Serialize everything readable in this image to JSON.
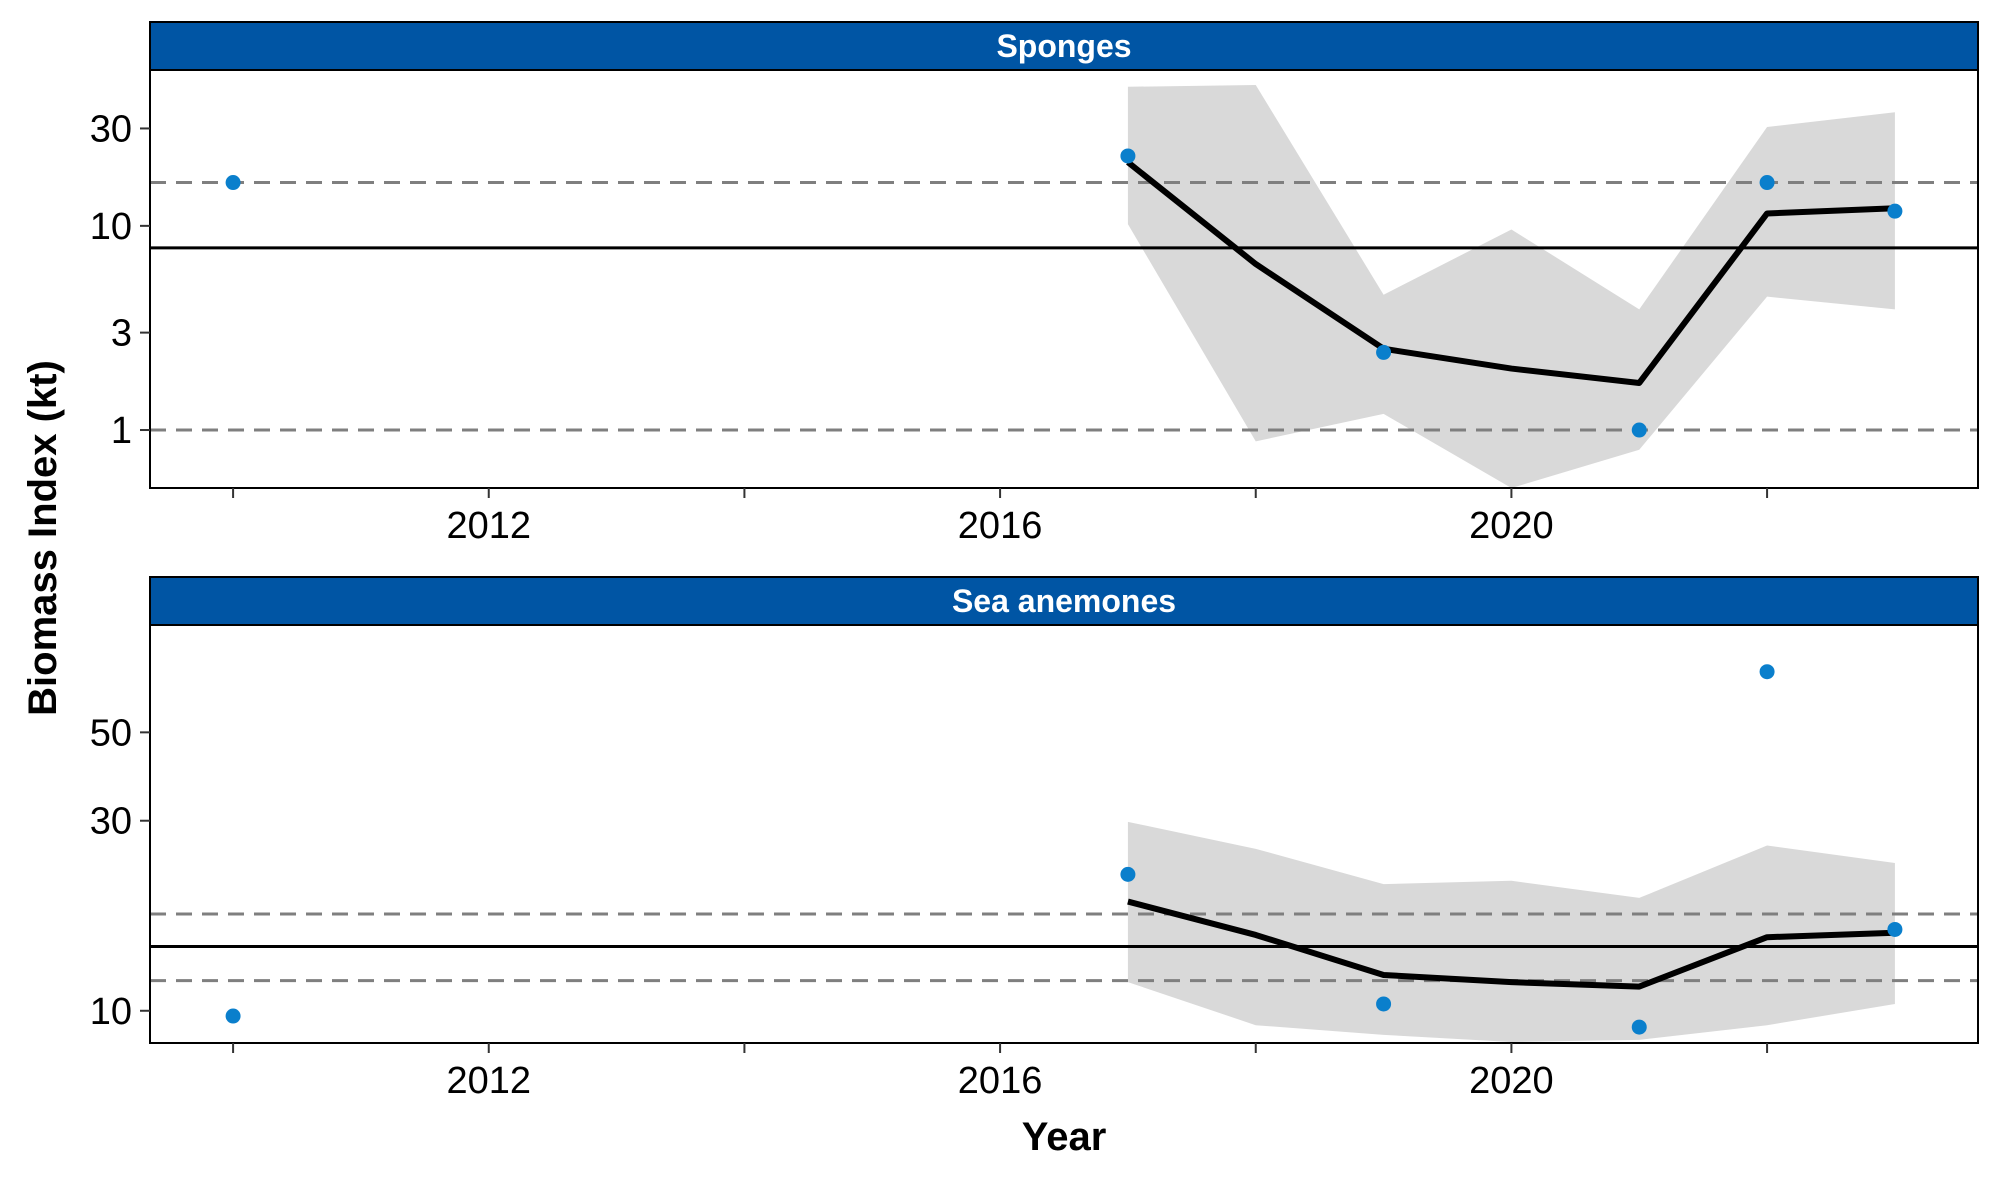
{
  "chart_data": {
    "type": "line",
    "ylabel": "Biomass Index (kt)",
    "xlabel": "Year",
    "x_ticks": [
      2012,
      2016,
      2020
    ],
    "x_minor_ticks": [
      2010,
      2014,
      2018,
      2022
    ],
    "xlim": [
      2009.35,
      2023.65
    ],
    "y_scale": "log",
    "colors": {
      "strip": "#0055a4",
      "points": "#0a7fcc",
      "band": "#d9d9d9",
      "dashed": "#7f7f7f"
    },
    "panels": [
      {
        "title": "Sponges",
        "ylim": [
          0.52,
          58
        ],
        "y_ticks": [
          1,
          3,
          10,
          30
        ],
        "y_tick_labels": [
          "1",
          "3",
          "10",
          "30"
        ],
        "mean_line": 7.8,
        "dashed_lines": [
          1.0,
          16.3
        ],
        "points": [
          {
            "x": 2010,
            "y": 16.3
          },
          {
            "x": 2017,
            "y": 22
          },
          {
            "x": 2019,
            "y": 2.4
          },
          {
            "x": 2021,
            "y": 1.0
          },
          {
            "x": 2022,
            "y": 16.3
          },
          {
            "x": 2023,
            "y": 11.8
          }
        ],
        "trend": [
          {
            "x": 2017,
            "y": 20.5
          },
          {
            "x": 2018,
            "y": 6.5
          },
          {
            "x": 2019,
            "y": 2.5
          },
          {
            "x": 2020,
            "y": 2.0
          },
          {
            "x": 2021,
            "y": 1.7
          },
          {
            "x": 2022,
            "y": 11.5
          },
          {
            "x": 2023,
            "y": 12.2
          }
        ],
        "band_upper": [
          {
            "x": 2017,
            "y": 48
          },
          {
            "x": 2018,
            "y": 49
          },
          {
            "x": 2019,
            "y": 4.6
          },
          {
            "x": 2020,
            "y": 9.6
          },
          {
            "x": 2021,
            "y": 3.9
          },
          {
            "x": 2022,
            "y": 30.5
          },
          {
            "x": 2023,
            "y": 36
          }
        ],
        "band_lower": [
          {
            "x": 2017,
            "y": 10.2
          },
          {
            "x": 2018,
            "y": 0.88
          },
          {
            "x": 2019,
            "y": 1.2
          },
          {
            "x": 2020,
            "y": 0.52
          },
          {
            "x": 2021,
            "y": 0.8
          },
          {
            "x": 2022,
            "y": 4.5
          },
          {
            "x": 2023,
            "y": 3.9
          }
        ]
      },
      {
        "title": "Sea anemones",
        "ylim": [
          8.3,
          93
        ],
        "y_ticks": [
          10,
          30,
          50
        ],
        "y_tick_labels": [
          "10",
          "30",
          "50"
        ],
        "mean_line": 14.5,
        "dashed_lines": [
          11.9,
          17.5
        ],
        "points": [
          {
            "x": 2010,
            "y": 9.7
          },
          {
            "x": 2017,
            "y": 22
          },
          {
            "x": 2019,
            "y": 10.4
          },
          {
            "x": 2021,
            "y": 9.1
          },
          {
            "x": 2022,
            "y": 71
          },
          {
            "x": 2023,
            "y": 16
          }
        ],
        "trend": [
          {
            "x": 2017,
            "y": 18.8
          },
          {
            "x": 2018,
            "y": 15.5
          },
          {
            "x": 2019,
            "y": 12.3
          },
          {
            "x": 2020,
            "y": 11.8
          },
          {
            "x": 2021,
            "y": 11.5
          },
          {
            "x": 2022,
            "y": 15.3
          },
          {
            "x": 2023,
            "y": 15.7
          }
        ],
        "band_upper": [
          {
            "x": 2017,
            "y": 29.8
          },
          {
            "x": 2018,
            "y": 25.5
          },
          {
            "x": 2019,
            "y": 20.8
          },
          {
            "x": 2020,
            "y": 21.2
          },
          {
            "x": 2021,
            "y": 19.2
          },
          {
            "x": 2022,
            "y": 26
          },
          {
            "x": 2023,
            "y": 23.5
          }
        ],
        "band_lower": [
          {
            "x": 2017,
            "y": 11.8
          },
          {
            "x": 2018,
            "y": 9.2
          },
          {
            "x": 2019,
            "y": 8.7
          },
          {
            "x": 2020,
            "y": 8.35
          },
          {
            "x": 2021,
            "y": 8.45
          },
          {
            "x": 2022,
            "y": 9.2
          },
          {
            "x": 2023,
            "y": 10.4
          }
        ]
      }
    ]
  }
}
